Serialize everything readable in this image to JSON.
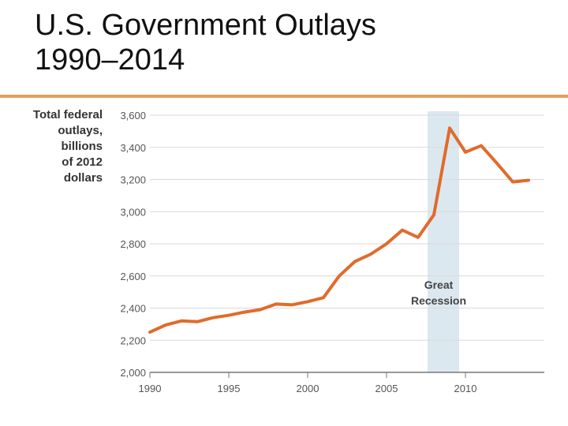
{
  "slide": {
    "title_line1": "U.S. Government Outlays",
    "title_line2": "1990–2014"
  },
  "chart_data": {
    "type": "line",
    "ylabel_lines": [
      "Total federal",
      "outlays,",
      "billions",
      "of 2012",
      "dollars"
    ],
    "xlim": [
      1990,
      2015
    ],
    "ylim": [
      2000,
      3600
    ],
    "x_ticks": [
      1990,
      1995,
      2000,
      2005,
      2010
    ],
    "x_tick_labels": [
      "1990",
      "1995",
      "2000",
      "2005",
      "2010"
    ],
    "y_ticks": [
      2000,
      2200,
      2400,
      2600,
      2800,
      3000,
      3200,
      3400,
      3600
    ],
    "y_tick_labels": [
      "2,000",
      "2,200",
      "2,400",
      "2,600",
      "2,800",
      "3,000",
      "3,200",
      "3,400",
      "3,600"
    ],
    "grid": "horizontal",
    "series": [
      {
        "color": "#e06b2c",
        "x": [
          1990,
          1991,
          1992,
          1993,
          1994,
          1995,
          1996,
          1997,
          1998,
          1999,
          2000,
          2001,
          2002,
          2003,
          2004,
          2005,
          2006,
          2007,
          2008,
          2009,
          2010,
          2011,
          2012,
          2013,
          2014
        ],
        "values": [
          2250,
          2295,
          2320,
          2315,
          2340,
          2355,
          2375,
          2390,
          2425,
          2420,
          2440,
          2465,
          2600,
          2690,
          2735,
          2800,
          2885,
          2840,
          2980,
          3520,
          3370,
          3410,
          3300,
          3185,
          3195
        ]
      }
    ],
    "shaded_region": {
      "x_start": 2007.6,
      "x_end": 2009.6,
      "color": "#dce8ef",
      "label_lines": [
        "Great",
        "Recession"
      ]
    }
  }
}
